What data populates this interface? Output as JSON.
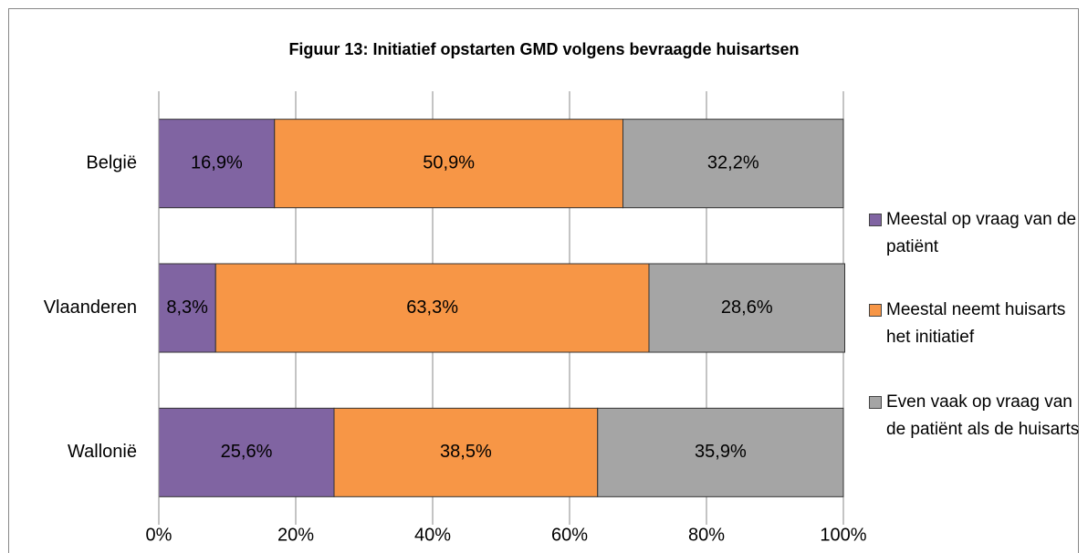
{
  "chart_data": {
    "type": "stacked_bar_horizontal",
    "title": "Figuur 13: Initiatief opstarten GMD volgens bevraagde huisartsen",
    "categories": [
      "België",
      "Vlaanderen",
      "Wallonië"
    ],
    "series": [
      {
        "name": "Meestal op vraag van de patiënt",
        "color": "#8064a2",
        "values": [
          16.9,
          8.3,
          25.6
        ],
        "value_labels": [
          "16,9%",
          "8,3%",
          "25,6%"
        ]
      },
      {
        "name": "Meestal neemt huisarts het initiatief",
        "color": "#f79646",
        "values": [
          50.9,
          63.3,
          38.5
        ],
        "value_labels": [
          "50,9%",
          "63,3%",
          "38,5%"
        ]
      },
      {
        "name": "Even vaak op vraag van de patiënt als de huisarts",
        "color": "#a5a5a5",
        "values": [
          32.2,
          28.6,
          35.9
        ],
        "value_labels": [
          "32,2%",
          "28,6%",
          "35,9%"
        ]
      }
    ],
    "xlim": [
      0,
      100
    ],
    "xticks": [
      {
        "value": 0,
        "label": "0%"
      },
      {
        "value": 20,
        "label": "20%"
      },
      {
        "value": 40,
        "label": "40%"
      },
      {
        "value": 60,
        "label": "60%"
      },
      {
        "value": 80,
        "label": "80%"
      },
      {
        "value": 100,
        "label": "100%"
      }
    ],
    "grid": true,
    "legend": "right"
  }
}
